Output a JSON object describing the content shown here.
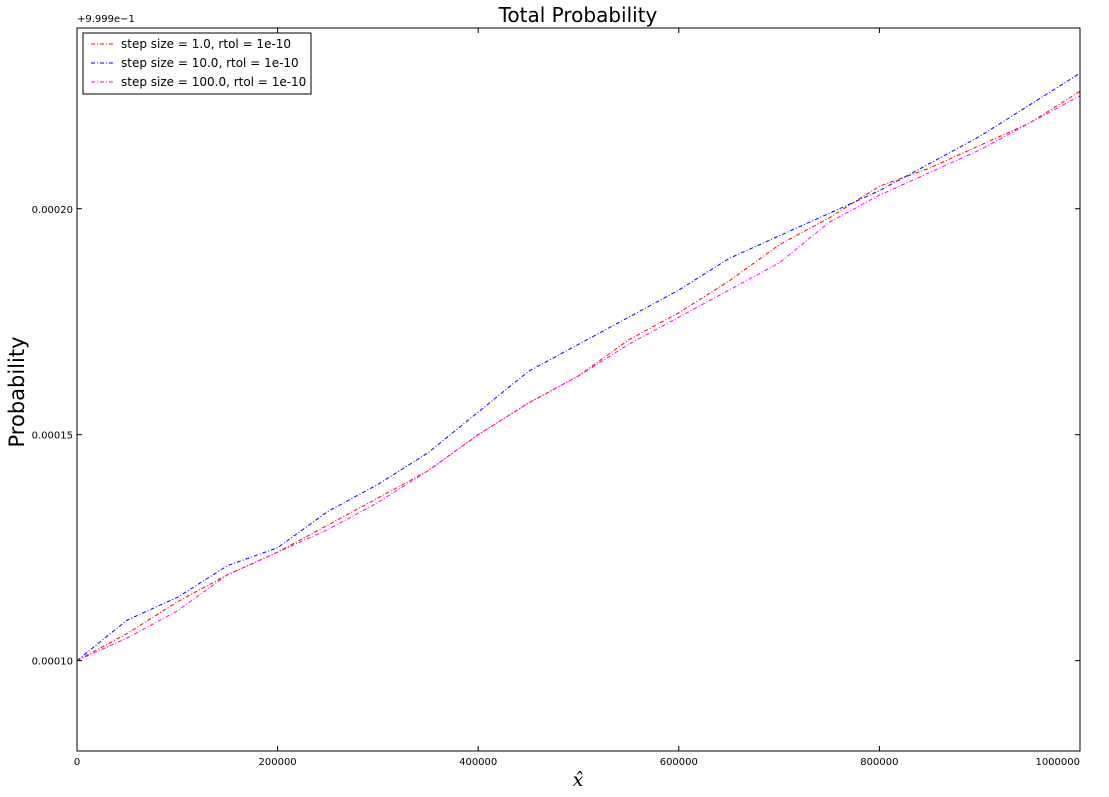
{
  "chart_data": {
    "type": "line",
    "title": "Total Probability",
    "xlabel": "x̂",
    "ylabel": "Probability",
    "y_offset_label": "+9.999e−1",
    "xlim": [
      0,
      1000000
    ],
    "ylim": [
      8e-05,
      0.00024
    ],
    "x_ticks": [
      0,
      200000,
      400000,
      600000,
      800000,
      1000000
    ],
    "x_tick_labels": [
      "0",
      "200000",
      "400000",
      "600000",
      "800000",
      "1000000"
    ],
    "y_ticks": [
      0.0001,
      0.00015,
      0.0002
    ],
    "y_tick_labels": [
      "0.00010",
      "0.00015",
      "0.00020"
    ],
    "grid": false,
    "legend_position": "top-left",
    "line_style": "dashdot",
    "x": [
      0,
      50000,
      100000,
      150000,
      200000,
      250000,
      300000,
      350000,
      400000,
      450000,
      500000,
      550000,
      600000,
      650000,
      700000,
      750000,
      800000,
      850000,
      900000,
      950000,
      1000000
    ],
    "series": [
      {
        "name": "step size = 1.0, rtol = 1e-10",
        "color": "#ff0000",
        "values": [
          0.0001,
          0.000106,
          0.000113,
          0.000119,
          0.000124,
          0.00013,
          0.000136,
          0.000142,
          0.00015,
          0.000157,
          0.000163,
          0.000171,
          0.000177,
          0.000184,
          0.000192,
          0.000198,
          0.000205,
          0.000209,
          0.000214,
          0.000219,
          0.000226
        ]
      },
      {
        "name": "step size = 10.0, rtol = 1e-10",
        "color": "#0000ff",
        "values": [
          0.0001,
          0.000109,
          0.000114,
          0.000121,
          0.000125,
          0.000133,
          0.000139,
          0.000146,
          0.000155,
          0.000164,
          0.00017,
          0.000176,
          0.000182,
          0.000189,
          0.000194,
          0.000199,
          0.000204,
          0.00021,
          0.000216,
          0.000223,
          0.00023
        ]
      },
      {
        "name": "step size = 100.0, rtol = 1e-10",
        "color": "#ff00ff",
        "values": [
          0.0001,
          0.000105,
          0.000111,
          0.000119,
          0.000124,
          0.000129,
          0.000135,
          0.000142,
          0.00015,
          0.000157,
          0.000163,
          0.00017,
          0.000176,
          0.000182,
          0.000188,
          0.000197,
          0.000203,
          0.000208,
          0.000213,
          0.000219,
          0.000225
        ]
      }
    ]
  }
}
